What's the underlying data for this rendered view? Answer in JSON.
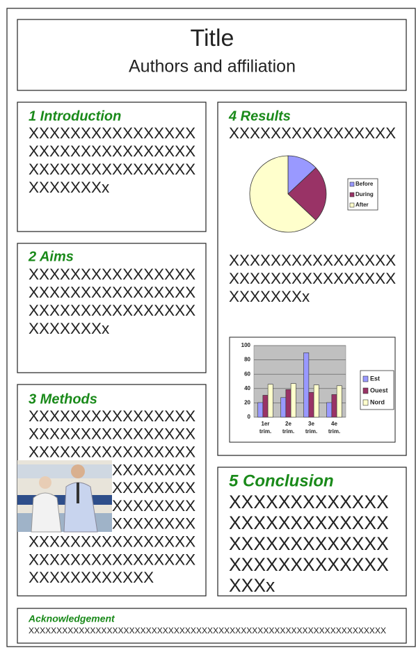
{
  "title": "Title",
  "authors": "Authors and affiliation",
  "sections": [
    {
      "heading": "1 Introduction",
      "lines": [
        "XXXXXXXXXXXXXXXX",
        "XXXXXXXXXXXXXXXX",
        "XXXXXXXXXXXXXXXX",
        "XXXXXXXx"
      ]
    },
    {
      "heading": "2 Aims",
      "lines": [
        "XXXXXXXXXXXXXXXX",
        "XXXXXXXXXXXXXXXX",
        "XXXXXXXXXXXXXXXX",
        "XXXXXXXx"
      ]
    },
    {
      "heading": "3 Methods",
      "lines": [
        "XXXXXXXXXXXXXXXX",
        "XXXXXXXXXXXXXXXX",
        "XXXXXXXXXXXXXXXX",
        "XXXXXXXXXXXXXXXX",
        "XXXXXXXXXXXXXXXX",
        "XXXXXXXXXXXXXXXX",
        "XXXXXXXXXXXXXXXX",
        "XXXXXXXXXXXXXXXX",
        "XXXXXXXXXXXXXXXX",
        "XXXXXXXXXXXX"
      ]
    },
    {
      "heading": "4 Results",
      "lines": [
        "XXXXXXXXXXXXXXXX"
      ],
      "lines_after": [
        "XXXXXXXXXXXXXXXX",
        "XXXXXXXXXXXXXXXX",
        "XXXXXXXx"
      ]
    },
    {
      "heading": "5 Conclusion",
      "lines": [
        "XXXXXXXXXXXXX",
        "XXXXXXXXXXXXX",
        "XXXXXXXXXXXXX",
        "XXXXXXXXXXXXX",
        "XXXx"
      ]
    }
  ],
  "acknowledgement": {
    "heading": "Acknowledgement",
    "text": "XXXXXXXXXXXXXXXXXXXXXXXXXXXXXXXXXXXXXXXXXXXXXXXXXXXXXXXXXXXXXXXX"
  },
  "chart_data": [
    {
      "type": "pie",
      "categories": [
        "Before",
        "During",
        "After"
      ],
      "values": [
        13,
        24,
        63
      ],
      "colors": [
        "#9999ff",
        "#993366",
        "#ffffcc"
      ]
    },
    {
      "type": "bar",
      "categories": [
        "1er trim.",
        "2e trim.",
        "3e trim.",
        "4e trim."
      ],
      "series": [
        {
          "name": "Est",
          "color": "#9999ff",
          "values": [
            20.4,
            27.4,
            90,
            20.4
          ]
        },
        {
          "name": "Ouest",
          "color": "#993366",
          "values": [
            30.6,
            38.6,
            34.6,
            31.6
          ]
        },
        {
          "name": "Nord",
          "color": "#ffffcc",
          "values": [
            45.9,
            46.9,
            45,
            43.9
          ]
        }
      ],
      "ylim": [
        0,
        100
      ],
      "yticks": [
        0,
        20,
        40,
        60,
        80,
        100
      ],
      "grid": true
    }
  ]
}
